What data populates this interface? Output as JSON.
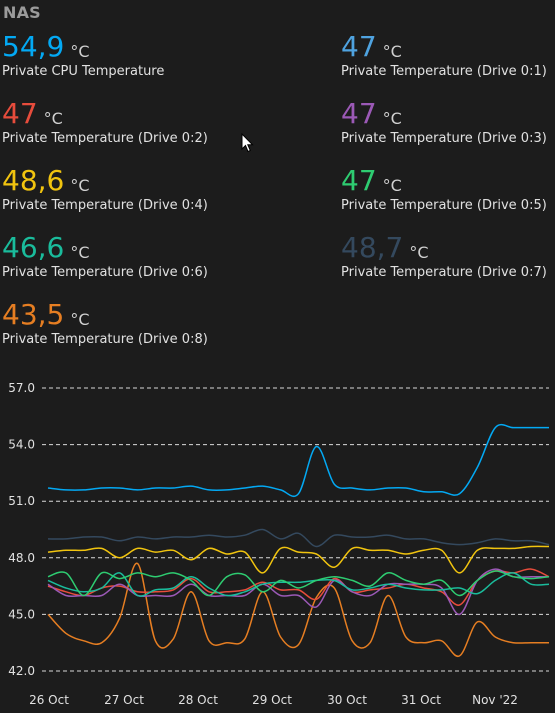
{
  "card": {
    "title": "NAS"
  },
  "sensors": [
    {
      "value": "54,9",
      "unit": "°C",
      "name": "Private CPU Temperature",
      "color": "#03a9f4"
    },
    {
      "value": "47",
      "unit": "°C",
      "name": "Private Temperature (Drive 0:1)",
      "color": "#4fa3e0"
    },
    {
      "value": "47",
      "unit": "°C",
      "name": "Private Temperature (Drive 0:2)",
      "color": "#e74c3c"
    },
    {
      "value": "47",
      "unit": "°C",
      "name": "Private Temperature (Drive 0:3)",
      "color": "#9b59b6"
    },
    {
      "value": "48,6",
      "unit": "°C",
      "name": "Private Temperature (Drive 0:4)",
      "color": "#f1c40f"
    },
    {
      "value": "47",
      "unit": "°C",
      "name": "Private Temperature (Drive 0:5)",
      "color": "#2ecc71"
    },
    {
      "value": "46,6",
      "unit": "°C",
      "name": "Private Temperature (Drive 0:6)",
      "color": "#1abc9c"
    },
    {
      "value": "48,7",
      "unit": "°C",
      "name": "Private Temperature (Drive 0:7)",
      "color": "#34495e"
    },
    {
      "value": "43,5",
      "unit": "°C",
      "name": "Private Temperature (Drive 0:8)",
      "color": "#e67e22"
    }
  ],
  "chart_data": {
    "type": "line",
    "ylim": [
      42.0,
      57.0
    ],
    "y_ticks": [
      "57.0",
      "54.0",
      "51.0",
      "48.0",
      "45.0",
      "42.0"
    ],
    "x_ticks": [
      "26 Oct",
      "27 Oct",
      "28 Oct",
      "29 Oct",
      "30 Oct",
      "31 Oct",
      "Nov '22"
    ],
    "grid": true,
    "x": [
      0,
      0.25,
      0.5,
      0.75,
      1,
      1.25,
      1.5,
      1.75,
      2,
      2.25,
      2.5,
      2.75,
      3,
      3.25,
      3.5,
      3.75,
      4,
      4.25,
      4.5,
      4.75,
      5,
      5.25,
      5.5,
      5.75,
      6,
      6.25,
      6.5,
      6.75,
      7
    ],
    "series": [
      {
        "color": "#03a9f4",
        "values": [
          51.7,
          51.6,
          51.6,
          51.7,
          51.7,
          51.6,
          51.7,
          51.7,
          51.8,
          51.6,
          51.6,
          51.7,
          51.8,
          51.6,
          51.4,
          53.9,
          51.9,
          51.7,
          51.6,
          51.7,
          51.7,
          51.5,
          51.5,
          51.4,
          52.8,
          54.9,
          54.9,
          54.9,
          54.9
        ]
      },
      {
        "color": "#34495e",
        "values": [
          49.0,
          49.0,
          49.1,
          49.1,
          48.9,
          49.1,
          49.0,
          49.1,
          49.1,
          49.2,
          49.1,
          49.2,
          49.5,
          49.0,
          49.3,
          48.6,
          49.2,
          49.1,
          49.1,
          49.2,
          49.0,
          49.0,
          48.8,
          48.7,
          48.8,
          49.0,
          48.9,
          48.9,
          48.7
        ]
      },
      {
        "color": "#f1c40f",
        "values": [
          48.3,
          48.4,
          48.4,
          48.5,
          48.0,
          48.5,
          48.3,
          48.4,
          47.9,
          48.5,
          48.2,
          48.3,
          47.2,
          48.5,
          48.3,
          48.2,
          47.5,
          48.5,
          48.4,
          48.4,
          48.2,
          48.4,
          48.4,
          47.2,
          48.4,
          48.5,
          48.5,
          48.6,
          48.6
        ]
      },
      {
        "color": "#2ecc71",
        "values": [
          47.0,
          47.2,
          46.0,
          47.2,
          46.9,
          47.2,
          47.0,
          47.2,
          46.8,
          46.0,
          47.0,
          47.1,
          46.2,
          46.8,
          46.4,
          46.8,
          47.0,
          46.8,
          46.5,
          47.2,
          46.8,
          46.6,
          46.8,
          46.0,
          46.8,
          47.3,
          47.0,
          46.9,
          47.0
        ]
      },
      {
        "color": "#1abc9c",
        "values": [
          46.8,
          46.4,
          46.2,
          46.4,
          47.2,
          46.0,
          46.3,
          46.4,
          47.0,
          46.4,
          46.0,
          46.2,
          46.6,
          46.7,
          46.7,
          46.8,
          46.8,
          46.3,
          46.4,
          46.6,
          46.4,
          46.3,
          46.3,
          46.4,
          46.1,
          46.8,
          47.2,
          46.6,
          46.6
        ]
      },
      {
        "color": "#9b59b6",
        "values": [
          46.6,
          46.0,
          46.0,
          46.0,
          46.6,
          46.0,
          46.0,
          46.0,
          46.6,
          46.0,
          46.0,
          46.0,
          46.6,
          46.0,
          46.0,
          45.4,
          46.8,
          46.2,
          46.0,
          46.6,
          46.6,
          46.6,
          46.4,
          45.0,
          46.8,
          47.4,
          47.0,
          47.0,
          47.0
        ]
      },
      {
        "color": "#e74c3c",
        "values": [
          46.5,
          46.2,
          46.0,
          46.4,
          46.5,
          46.2,
          46.2,
          46.3,
          46.9,
          46.2,
          46.2,
          46.3,
          46.7,
          46.3,
          46.3,
          45.8,
          46.9,
          46.2,
          46.3,
          46.4,
          46.6,
          46.4,
          46.2,
          45.5,
          46.8,
          47.3,
          47.2,
          47.4,
          47.0
        ]
      },
      {
        "color": "#e67e22",
        "values": [
          45.0,
          44.0,
          43.6,
          43.5,
          44.8,
          47.7,
          43.6,
          43.7,
          46.2,
          43.6,
          43.5,
          43.7,
          46.2,
          43.8,
          43.4,
          45.9,
          46.4,
          43.6,
          43.5,
          46.0,
          43.8,
          43.5,
          43.6,
          42.8,
          44.6,
          43.8,
          43.5,
          43.5,
          43.5
        ]
      }
    ]
  },
  "cursor": {
    "icon": "mouse-pointer-icon"
  }
}
